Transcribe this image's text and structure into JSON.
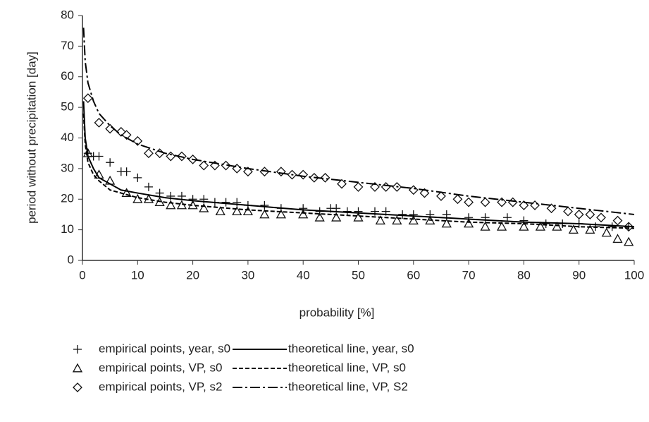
{
  "chart_data": {
    "type": "scatter",
    "x_label": "probability [%]",
    "y_label": "period without precipitation [day]",
    "xlim": [
      0,
      100
    ],
    "xticks": [
      0,
      10,
      20,
      30,
      40,
      50,
      60,
      70,
      80,
      90,
      100
    ],
    "ylim": [
      0,
      80
    ],
    "yticks": [
      0,
      10,
      20,
      30,
      40,
      50,
      60,
      70,
      80
    ],
    "grid": false,
    "series": [
      {
        "name": "empirical points, year, s0",
        "color": "#111111",
        "marker": "plus",
        "x": [
          1,
          2,
          3,
          5,
          7,
          8,
          10,
          12,
          14,
          16,
          18,
          20,
          22,
          24,
          26,
          28,
          30,
          33,
          36,
          40,
          43,
          45,
          46,
          48,
          50,
          53,
          55,
          58,
          60,
          63,
          66,
          70,
          73,
          77,
          80,
          84,
          87,
          90,
          93,
          96,
          99
        ],
        "values": [
          35,
          34,
          34,
          32,
          29,
          29,
          27,
          24,
          22,
          21,
          21,
          20,
          20,
          19,
          19,
          19,
          18,
          18,
          17,
          17,
          16,
          17,
          17,
          16,
          16,
          16,
          16,
          15,
          15,
          15,
          15,
          14,
          14,
          14,
          13,
          12,
          12,
          12,
          11,
          11,
          11
        ]
      },
      {
        "name": "empirical points, VP, s0",
        "color": "#111111",
        "marker": "triangle",
        "x": [
          1,
          3,
          5,
          8,
          10,
          12,
          14,
          16,
          18,
          20,
          22,
          25,
          28,
          30,
          33,
          36,
          40,
          43,
          46,
          50,
          54,
          57,
          60,
          63,
          66,
          70,
          73,
          76,
          80,
          83,
          86,
          89,
          92,
          95,
          97,
          99
        ],
        "values": [
          35,
          28,
          26,
          22,
          20,
          20,
          19,
          18,
          18,
          18,
          17,
          16,
          16,
          16,
          15,
          15,
          15,
          14,
          14,
          14,
          13,
          13,
          13,
          13,
          12,
          12,
          11,
          11,
          11,
          11,
          11,
          10,
          10,
          9,
          7,
          6
        ]
      },
      {
        "name": "empirical points, VP, s2",
        "color": "#111111",
        "marker": "diamond",
        "x": [
          1,
          3,
          5,
          7,
          8,
          10,
          12,
          14,
          16,
          18,
          20,
          22,
          24,
          26,
          28,
          30,
          33,
          36,
          38,
          40,
          42,
          44,
          47,
          50,
          53,
          55,
          57,
          60,
          62,
          65,
          68,
          70,
          73,
          76,
          78,
          80,
          82,
          85,
          88,
          90,
          92,
          94,
          97,
          99
        ],
        "values": [
          53,
          45,
          43,
          42,
          41,
          39,
          35,
          35,
          34,
          34,
          33,
          31,
          31,
          31,
          30,
          29,
          29,
          29,
          28,
          28,
          27,
          27,
          25,
          24,
          24,
          24,
          24,
          23,
          22,
          21,
          20,
          19,
          19,
          19,
          19,
          18,
          18,
          17,
          16,
          15,
          15,
          14,
          13,
          11
        ]
      },
      {
        "name": "theoretical line, year, s0",
        "color": "#000000",
        "line_style": "solid",
        "x": [
          0.2,
          0.5,
          1,
          2,
          3,
          5,
          7,
          10,
          15,
          20,
          30,
          40,
          50,
          60,
          70,
          80,
          90,
          100
        ],
        "values": [
          52,
          40,
          34,
          30,
          27,
          25,
          23,
          22,
          20.5,
          19.5,
          18,
          16.5,
          15.5,
          14.5,
          13.5,
          12.5,
          12,
          11
        ]
      },
      {
        "name": "theoretical line, VP, s0",
        "color": "#000000",
        "line_style": "dashed",
        "x": [
          0.2,
          0.5,
          1,
          2,
          3,
          5,
          7,
          10,
          15,
          20,
          30,
          40,
          50,
          60,
          70,
          80,
          90,
          100
        ],
        "values": [
          48,
          38,
          32,
          28,
          26,
          23,
          22,
          20.5,
          19,
          18,
          16.5,
          15.5,
          14.5,
          13.5,
          12.5,
          12,
          11,
          10.5
        ]
      },
      {
        "name": "theoretical line, VP, S2",
        "color": "#000000",
        "line_style": "dashdot",
        "x": [
          0.2,
          0.5,
          1,
          2,
          3,
          5,
          7,
          10,
          15,
          20,
          30,
          40,
          50,
          60,
          70,
          80,
          90,
          100
        ],
        "values": [
          76,
          65,
          58,
          52,
          48,
          44,
          41,
          38,
          35,
          33,
          30,
          27.5,
          25.5,
          23.5,
          21,
          19,
          17,
          15
        ]
      }
    ]
  }
}
